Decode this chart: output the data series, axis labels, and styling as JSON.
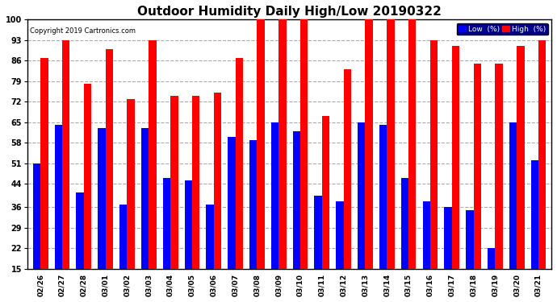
{
  "title": "Outdoor Humidity Daily High/Low 20190322",
  "copyright": "Copyright 2019 Cartronics.com",
  "categories": [
    "02/26",
    "02/27",
    "02/28",
    "03/01",
    "03/02",
    "03/03",
    "03/04",
    "03/05",
    "03/06",
    "03/07",
    "03/08",
    "03/09",
    "03/10",
    "03/11",
    "03/12",
    "03/13",
    "03/14",
    "03/15",
    "03/16",
    "03/17",
    "03/18",
    "03/19",
    "03/20",
    "03/21"
  ],
  "high": [
    87,
    93,
    78,
    90,
    73,
    93,
    74,
    74,
    75,
    87,
    100,
    100,
    100,
    67,
    83,
    100,
    100,
    100,
    93,
    91,
    85,
    85,
    91,
    93
  ],
  "low": [
    51,
    64,
    41,
    63,
    37,
    63,
    46,
    45,
    37,
    60,
    59,
    65,
    62,
    40,
    38,
    65,
    64,
    46,
    38,
    36,
    35,
    22,
    65,
    52
  ],
  "high_color": "#ff0000",
  "low_color": "#0000ff",
  "bg_color": "#ffffff",
  "ylim_min": 15,
  "ylim_max": 100,
  "yticks": [
    15,
    22,
    29,
    36,
    44,
    51,
    58,
    65,
    72,
    79,
    86,
    93,
    100
  ],
  "title_fontsize": 11,
  "bar_width": 0.35,
  "legend_low_label": "Low  (%)",
  "legend_high_label": "High  (%)"
}
